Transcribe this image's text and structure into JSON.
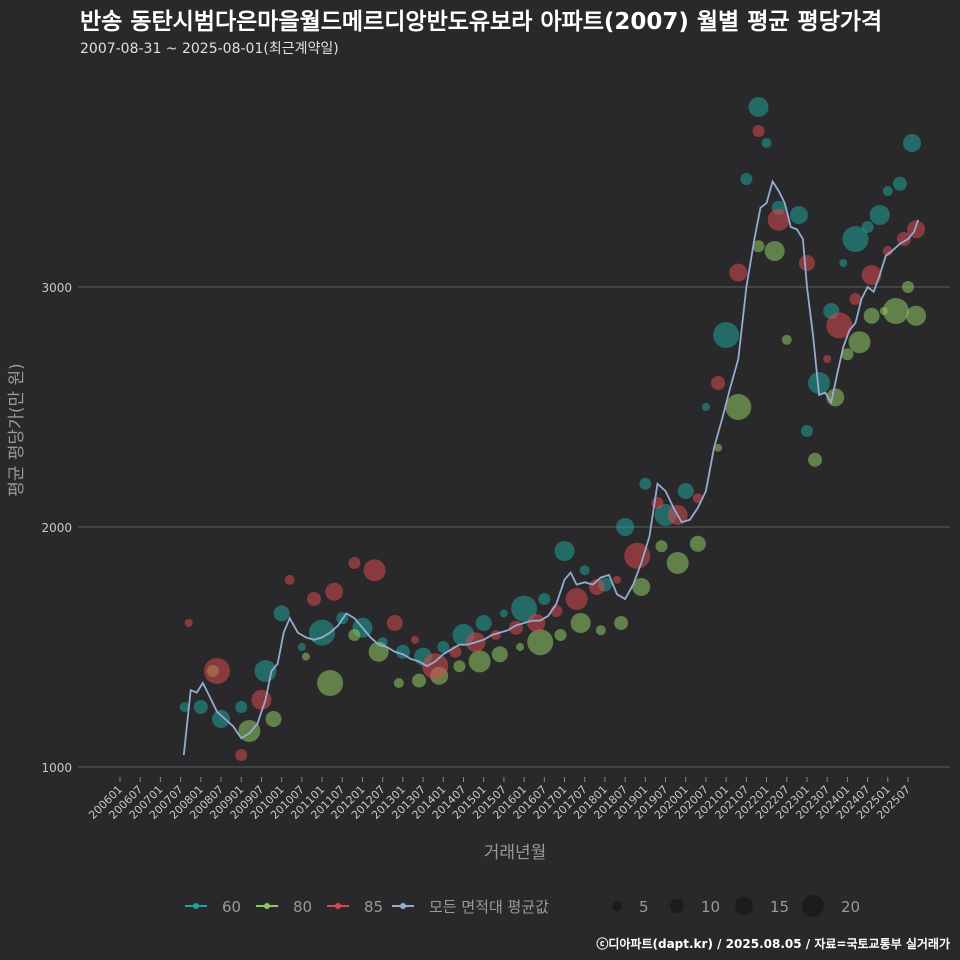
{
  "chart_data": {
    "type": "scatter",
    "title": "반송 동탄시범다은마을월드메르디앙반도유보라 아파트(2007) 월별 평균 평당가격",
    "subtitle": "2007-08-31 ~ 2025-08-01(최근계약일)",
    "xlabel": "거래년월",
    "ylabel": "평균 평당가(만 원)",
    "ylim": [
      900,
      3800
    ],
    "yticks": [
      1000,
      2000,
      3000
    ],
    "x_tick_labels": [
      "200601",
      "200607",
      "200701",
      "200707",
      "200801",
      "200807",
      "200901",
      "200907",
      "201001",
      "201007",
      "201101",
      "201107",
      "201201",
      "201207",
      "201301",
      "201307",
      "201401",
      "201407",
      "201501",
      "201507",
      "201601",
      "201607",
      "201701",
      "201707",
      "201801",
      "201807",
      "201901",
      "201907",
      "202001",
      "202007",
      "202101",
      "202107",
      "202201",
      "202207",
      "202301",
      "202307",
      "202401",
      "202407",
      "202501",
      "202507"
    ],
    "series": [
      {
        "name": "60",
        "color": "#21a39a",
        "points": [
          [
            2007.6,
            1250
          ],
          [
            2008.0,
            1250
          ],
          [
            2008.5,
            1200
          ],
          [
            2009.0,
            1250
          ],
          [
            2009.6,
            1400
          ],
          [
            2010.0,
            1640
          ],
          [
            2010.5,
            1500
          ],
          [
            2011.0,
            1560
          ],
          [
            2011.5,
            1620
          ],
          [
            2012.0,
            1580
          ],
          [
            2012.5,
            1520
          ],
          [
            2013.0,
            1480
          ],
          [
            2013.5,
            1460
          ],
          [
            2014.0,
            1500
          ],
          [
            2014.5,
            1550
          ],
          [
            2015.0,
            1600
          ],
          [
            2015.5,
            1640
          ],
          [
            2016.0,
            1660
          ],
          [
            2016.5,
            1700
          ],
          [
            2017.0,
            1900
          ],
          [
            2017.5,
            1820
          ],
          [
            2018.0,
            1760
          ],
          [
            2018.5,
            2000
          ],
          [
            2019.0,
            2180
          ],
          [
            2019.5,
            2050
          ],
          [
            2020.0,
            2150
          ],
          [
            2020.5,
            2500
          ],
          [
            2021.0,
            2800
          ],
          [
            2021.5,
            3450
          ],
          [
            2021.8,
            3750
          ],
          [
            2022.0,
            3600
          ],
          [
            2022.3,
            3330
          ],
          [
            2022.8,
            3300
          ],
          [
            2023.0,
            2400
          ],
          [
            2023.3,
            2600
          ],
          [
            2023.6,
            2900
          ],
          [
            2023.9,
            3100
          ],
          [
            2024.2,
            3200
          ],
          [
            2024.5,
            3250
          ],
          [
            2024.8,
            3300
          ],
          [
            2025.0,
            3400
          ],
          [
            2025.3,
            3430
          ],
          [
            2025.6,
            3600
          ]
        ]
      },
      {
        "name": "80",
        "color": "#8fc864",
        "points": [
          [
            2008.3,
            1400
          ],
          [
            2009.2,
            1150
          ],
          [
            2009.8,
            1200
          ],
          [
            2010.6,
            1460
          ],
          [
            2011.2,
            1350
          ],
          [
            2011.8,
            1550
          ],
          [
            2012.4,
            1480
          ],
          [
            2012.9,
            1350
          ],
          [
            2013.4,
            1360
          ],
          [
            2013.9,
            1380
          ],
          [
            2014.4,
            1420
          ],
          [
            2014.9,
            1440
          ],
          [
            2015.4,
            1470
          ],
          [
            2015.9,
            1500
          ],
          [
            2016.4,
            1520
          ],
          [
            2016.9,
            1550
          ],
          [
            2017.4,
            1600
          ],
          [
            2017.9,
            1570
          ],
          [
            2018.4,
            1600
          ],
          [
            2018.9,
            1750
          ],
          [
            2019.4,
            1920
          ],
          [
            2019.8,
            1850
          ],
          [
            2020.3,
            1930
          ],
          [
            2020.8,
            2330
          ],
          [
            2021.3,
            2500
          ],
          [
            2021.8,
            3170
          ],
          [
            2022.2,
            3150
          ],
          [
            2022.5,
            2780
          ],
          [
            2023.2,
            2280
          ],
          [
            2023.7,
            2540
          ],
          [
            2024.0,
            2720
          ],
          [
            2024.3,
            2770
          ],
          [
            2024.6,
            2880
          ],
          [
            2024.9,
            2900
          ],
          [
            2025.2,
            2900
          ],
          [
            2025.5,
            3000
          ],
          [
            2025.7,
            2880
          ]
        ]
      },
      {
        "name": "85",
        "color": "#d9484f",
        "points": [
          [
            2007.7,
            1600
          ],
          [
            2008.4,
            1400
          ],
          [
            2009.0,
            1050
          ],
          [
            2009.5,
            1280
          ],
          [
            2010.2,
            1780
          ],
          [
            2010.8,
            1700
          ],
          [
            2011.3,
            1730
          ],
          [
            2011.8,
            1850
          ],
          [
            2012.3,
            1820
          ],
          [
            2012.8,
            1600
          ],
          [
            2013.3,
            1530
          ],
          [
            2013.8,
            1420
          ],
          [
            2014.3,
            1480
          ],
          [
            2014.8,
            1520
          ],
          [
            2015.3,
            1550
          ],
          [
            2015.8,
            1580
          ],
          [
            2016.3,
            1600
          ],
          [
            2016.8,
            1650
          ],
          [
            2017.3,
            1700
          ],
          [
            2017.8,
            1750
          ],
          [
            2018.3,
            1780
          ],
          [
            2018.8,
            1880
          ],
          [
            2019.3,
            2100
          ],
          [
            2019.8,
            2050
          ],
          [
            2020.3,
            2120
          ],
          [
            2020.8,
            2600
          ],
          [
            2021.3,
            3060
          ],
          [
            2021.8,
            3650
          ],
          [
            2022.3,
            3280
          ],
          [
            2023.0,
            3100
          ],
          [
            2023.5,
            2700
          ],
          [
            2023.8,
            2840
          ],
          [
            2024.2,
            2950
          ],
          [
            2024.6,
            3050
          ],
          [
            2025.0,
            3150
          ],
          [
            2025.4,
            3200
          ],
          [
            2025.7,
            3240
          ]
        ]
      },
      {
        "name": "모든 면적대 평균값",
        "color": "#95abd2",
        "line": [
          [
            2007.58,
            1050
          ],
          [
            2007.75,
            1320
          ],
          [
            2007.9,
            1310
          ],
          [
            2008.05,
            1350
          ],
          [
            2008.2,
            1300
          ],
          [
            2008.4,
            1230
          ],
          [
            2008.6,
            1200
          ],
          [
            2008.8,
            1170
          ],
          [
            2009.0,
            1120
          ],
          [
            2009.2,
            1140
          ],
          [
            2009.4,
            1180
          ],
          [
            2009.6,
            1280
          ],
          [
            2009.75,
            1400
          ],
          [
            2009.9,
            1430
          ],
          [
            2010.05,
            1560
          ],
          [
            2010.2,
            1620
          ],
          [
            2010.4,
            1560
          ],
          [
            2010.6,
            1540
          ],
          [
            2010.8,
            1530
          ],
          [
            2011.0,
            1540
          ],
          [
            2011.2,
            1560
          ],
          [
            2011.4,
            1590
          ],
          [
            2011.6,
            1640
          ],
          [
            2011.8,
            1620
          ],
          [
            2012.0,
            1580
          ],
          [
            2012.2,
            1540
          ],
          [
            2012.4,
            1510
          ],
          [
            2012.6,
            1500
          ],
          [
            2012.8,
            1480
          ],
          [
            2013.0,
            1470
          ],
          [
            2013.2,
            1450
          ],
          [
            2013.4,
            1440
          ],
          [
            2013.6,
            1420
          ],
          [
            2013.8,
            1440
          ],
          [
            2014.0,
            1470
          ],
          [
            2014.2,
            1490
          ],
          [
            2014.4,
            1510
          ],
          [
            2014.6,
            1510
          ],
          [
            2014.8,
            1520
          ],
          [
            2015.0,
            1530
          ],
          [
            2015.2,
            1550
          ],
          [
            2015.4,
            1560
          ],
          [
            2015.6,
            1570
          ],
          [
            2015.8,
            1590
          ],
          [
            2016.0,
            1600
          ],
          [
            2016.2,
            1610
          ],
          [
            2016.4,
            1610
          ],
          [
            2016.6,
            1630
          ],
          [
            2016.8,
            1680
          ],
          [
            2017.0,
            1780
          ],
          [
            2017.15,
            1810
          ],
          [
            2017.3,
            1760
          ],
          [
            2017.5,
            1770
          ],
          [
            2017.7,
            1760
          ],
          [
            2017.9,
            1790
          ],
          [
            2018.1,
            1800
          ],
          [
            2018.3,
            1720
          ],
          [
            2018.5,
            1700
          ],
          [
            2018.7,
            1760
          ],
          [
            2018.9,
            1850
          ],
          [
            2019.1,
            1960
          ],
          [
            2019.3,
            2180
          ],
          [
            2019.5,
            2150
          ],
          [
            2019.7,
            2080
          ],
          [
            2019.9,
            2020
          ],
          [
            2020.1,
            2030
          ],
          [
            2020.3,
            2080
          ],
          [
            2020.5,
            2150
          ],
          [
            2020.7,
            2330
          ],
          [
            2020.9,
            2450
          ],
          [
            2021.1,
            2580
          ],
          [
            2021.3,
            2700
          ],
          [
            2021.5,
            3000
          ],
          [
            2021.7,
            3200
          ],
          [
            2021.85,
            3330
          ],
          [
            2022.0,
            3350
          ],
          [
            2022.15,
            3440
          ],
          [
            2022.3,
            3400
          ],
          [
            2022.45,
            3350
          ],
          [
            2022.6,
            3250
          ],
          [
            2022.75,
            3240
          ],
          [
            2022.9,
            3200
          ],
          [
            2023.0,
            3000
          ],
          [
            2023.15,
            2800
          ],
          [
            2023.3,
            2550
          ],
          [
            2023.45,
            2560
          ],
          [
            2023.6,
            2520
          ],
          [
            2023.75,
            2640
          ],
          [
            2023.9,
            2750
          ],
          [
            2024.05,
            2820
          ],
          [
            2024.2,
            2850
          ],
          [
            2024.35,
            2950
          ],
          [
            2024.5,
            3000
          ],
          [
            2024.65,
            2980
          ],
          [
            2024.8,
            3050
          ],
          [
            2024.95,
            3130
          ],
          [
            2025.1,
            3150
          ],
          [
            2025.3,
            3180
          ],
          [
            2025.5,
            3200
          ],
          [
            2025.65,
            3230
          ],
          [
            2025.75,
            3280
          ]
        ]
      }
    ],
    "size_legend": [
      5,
      10,
      15,
      20
    ],
    "footer": "ⓒ디아파트(dapt.kr) / 2025.08.05 / 자료=국토교통부 실거래가"
  }
}
